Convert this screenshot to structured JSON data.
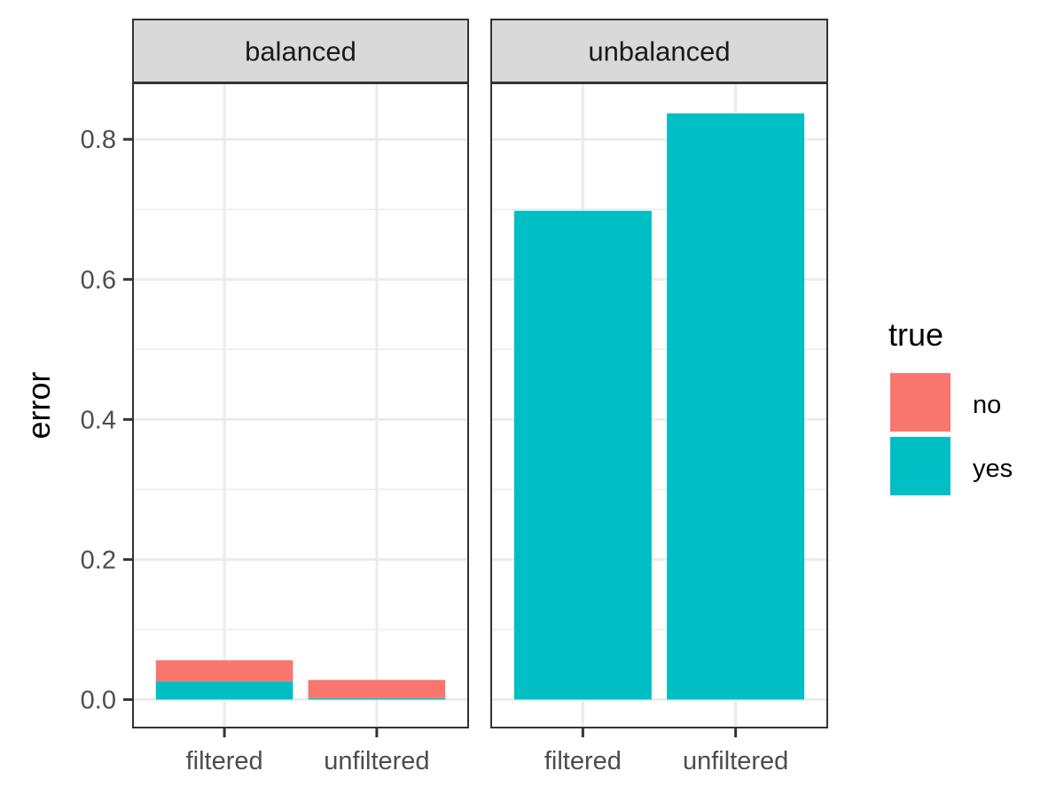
{
  "chart_data": {
    "type": "bar",
    "stacked": true,
    "facet_by": "balance",
    "facets": [
      {
        "label": "balanced",
        "categories": [
          "filtered",
          "unfiltered"
        ],
        "series": [
          {
            "name": "no",
            "values": [
              0.03,
              0.026
            ]
          },
          {
            "name": "yes",
            "values": [
              0.026,
              0.002
            ]
          }
        ]
      },
      {
        "label": "unbalanced",
        "categories": [
          "filtered",
          "unfiltered"
        ],
        "series": [
          {
            "name": "no",
            "values": [
              0.0,
              0.0
            ]
          },
          {
            "name": "yes",
            "values": [
              0.698,
              0.837
            ]
          }
        ]
      }
    ],
    "xlabel": "",
    "ylabel": "error",
    "ylim": [
      -0.04,
      0.88
    ],
    "yticks": [
      0.0,
      0.2,
      0.4,
      0.6,
      0.8
    ],
    "ytick_labels": [
      "0.0",
      "0.2",
      "0.4",
      "0.6",
      "0.8"
    ],
    "legend": {
      "title": "true",
      "position": "right",
      "entries": [
        {
          "label": "no",
          "color": "#F8766D"
        },
        {
          "label": "yes",
          "color": "#00BFC4"
        }
      ]
    },
    "grid": true,
    "theme": "bw"
  }
}
